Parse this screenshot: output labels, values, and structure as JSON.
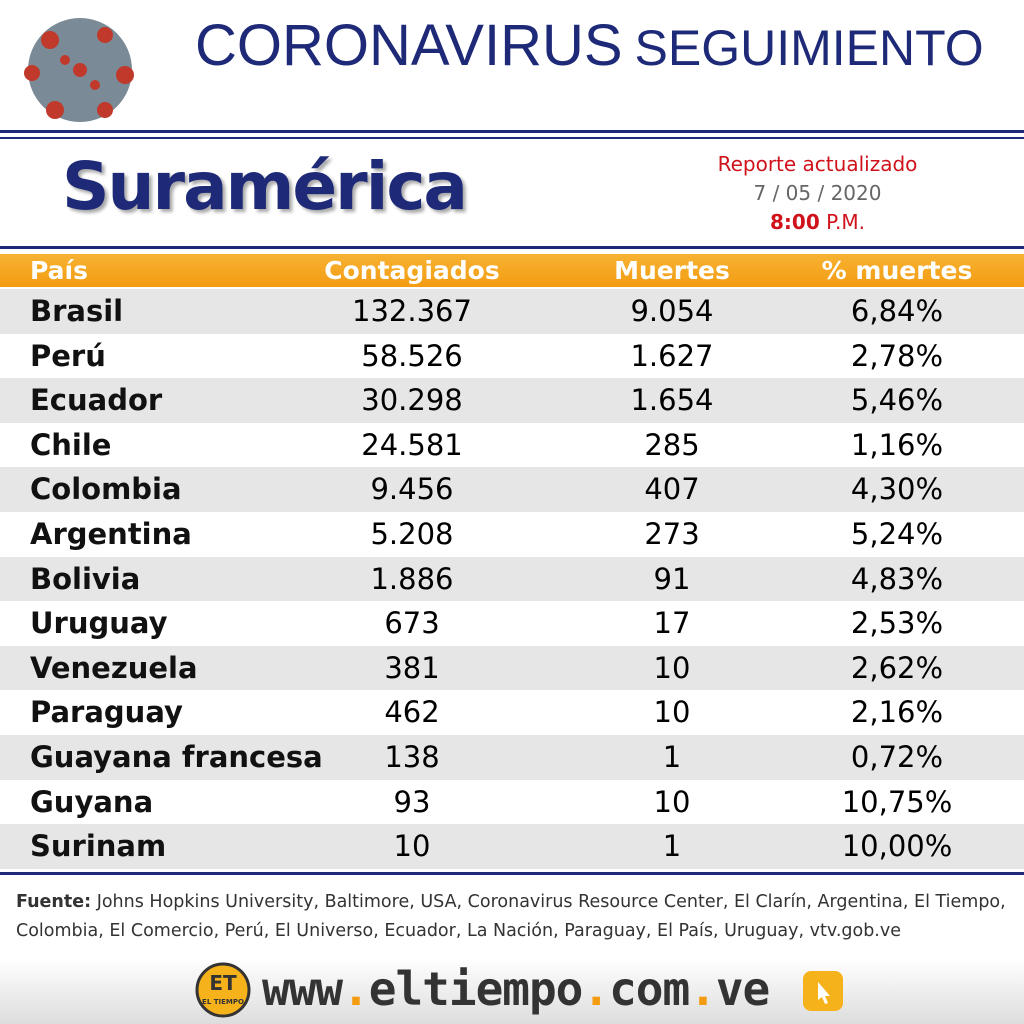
{
  "header": {
    "title_main": "CORONAVIRUS",
    "title_sub": "SEGUIMIENTO"
  },
  "region": "Suramérica",
  "report": {
    "label": "Reporte actualizado",
    "date": "7 / 05 / 2020",
    "time": "8:00",
    "period": "P.M."
  },
  "table": {
    "columns": [
      "País",
      "Contagiados",
      "Muertes",
      "% muertes"
    ],
    "rows": [
      [
        "Brasil",
        "132.367",
        "9.054",
        "6,84%"
      ],
      [
        "Perú",
        "58.526",
        "1.627",
        "2,78%"
      ],
      [
        "Ecuador",
        "30.298",
        "1.654",
        "5,46%"
      ],
      [
        "Chile",
        "24.581",
        "285",
        "1,16%"
      ],
      [
        "Colombia",
        "9.456",
        "407",
        "4,30%"
      ],
      [
        "Argentina",
        "5.208",
        "273",
        "5,24%"
      ],
      [
        "Bolivia",
        "1.886",
        "91",
        "4,83%"
      ],
      [
        "Uruguay",
        "673",
        "17",
        "2,53%"
      ],
      [
        "Venezuela",
        "381",
        "10",
        "2,62%"
      ],
      [
        "Paraguay",
        "462",
        "10",
        "2,16%"
      ],
      [
        "Guayana francesa",
        "138",
        "1",
        "0,72%"
      ],
      [
        "Guyana",
        "93",
        "10",
        "10,75%"
      ],
      [
        "Surinam",
        "10",
        "1",
        "10,00%"
      ]
    ]
  },
  "footer": {
    "source_label": "Fuente:",
    "source_text": "Johns Hopkins University, Baltimore, USA, Coronavirus Resource Center,  El Clarín, Argentina, El Tiempo, Colombia, El Comercio, Perú, El Universo, Ecuador, La Nación, Paraguay, El País, Uruguay, vtv.gob.ve",
    "logo": "ET",
    "logo_sub": "EL TIEMPO",
    "website": [
      "www",
      ".",
      "eltiempo",
      ".",
      "com",
      ".",
      "ve"
    ]
  }
}
